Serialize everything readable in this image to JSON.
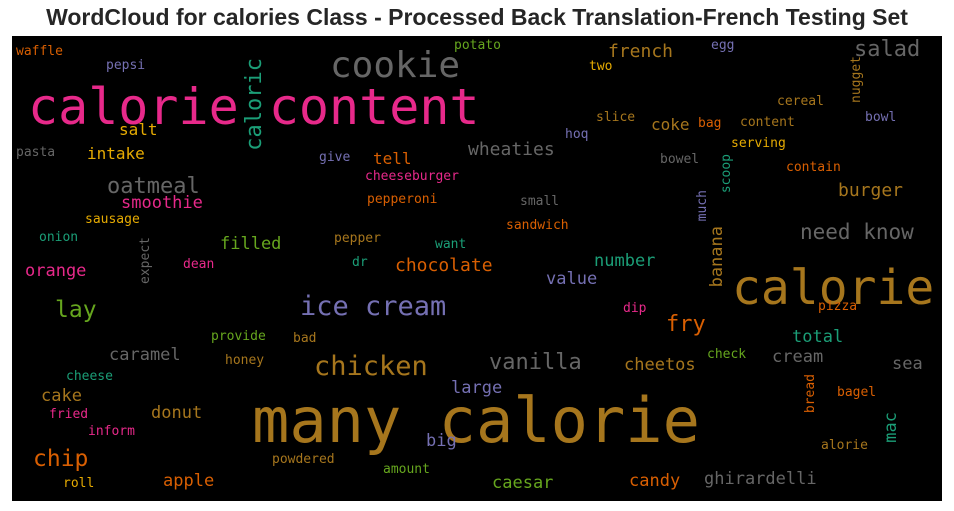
{
  "title": "WordCloud for calories Class - Processed Back Translation-French Testing Set",
  "colors": {
    "background": "#000000",
    "title_text": "#262626",
    "palette": {
      "pink": "#e7298a",
      "green": "#1b9e77",
      "orange": "#d95f02",
      "gold": "#a6761d",
      "grey": "#666666",
      "purple": "#7570b3",
      "yellow": "#e6ab02",
      "lime": "#66a61e"
    }
  },
  "words": [
    {
      "text": "calorie content",
      "color": "#e7298a"
    },
    {
      "text": "cookie",
      "color": "#666666"
    },
    {
      "text": "many calorie",
      "color": "#a6761d"
    },
    {
      "text": "calorie",
      "color": "#a6761d"
    },
    {
      "text": "ice cream",
      "color": "#7570b3"
    },
    {
      "text": "chicken",
      "color": "#a6761d"
    },
    {
      "text": "salad",
      "color": "#666666"
    },
    {
      "text": "caloric",
      "color": "#1b9e77"
    },
    {
      "text": "need know",
      "color": "#666666"
    },
    {
      "text": "vanilla",
      "color": "#666666"
    },
    {
      "text": "oatmeal",
      "color": "#666666"
    },
    {
      "text": "fry",
      "color": "#d95f02"
    },
    {
      "text": "lay",
      "color": "#66a61e"
    },
    {
      "text": "chip",
      "color": "#d95f02"
    },
    {
      "text": "french",
      "color": "#a6761d"
    },
    {
      "text": "chocolate",
      "color": "#d95f02"
    },
    {
      "text": "burger",
      "color": "#a6761d"
    },
    {
      "text": "wheaties",
      "color": "#666666"
    },
    {
      "text": "smoothie",
      "color": "#e7298a"
    },
    {
      "text": "orange",
      "color": "#e7298a"
    },
    {
      "text": "filled",
      "color": "#66a61e"
    },
    {
      "text": "number",
      "color": "#1b9e77"
    },
    {
      "text": "value",
      "color": "#7570b3"
    },
    {
      "text": "banana",
      "color": "#a6761d"
    },
    {
      "text": "caramel",
      "color": "#666666"
    },
    {
      "text": "cheetos",
      "color": "#a6761d"
    },
    {
      "text": "total",
      "color": "#1b9e77"
    },
    {
      "text": "cream",
      "color": "#666666"
    },
    {
      "text": "sea",
      "color": "#666666"
    },
    {
      "text": "large",
      "color": "#7570b3"
    },
    {
      "text": "cake",
      "color": "#a6761d"
    },
    {
      "text": "donut",
      "color": "#a6761d"
    },
    {
      "text": "big",
      "color": "#7570b3"
    },
    {
      "text": "apple",
      "color": "#d95f02"
    },
    {
      "text": "caesar",
      "color": "#66a61e"
    },
    {
      "text": "candy",
      "color": "#d95f02"
    },
    {
      "text": "ghirardelli",
      "color": "#666666"
    },
    {
      "text": "mac",
      "color": "#1b9e77"
    },
    {
      "text": "intake",
      "color": "#e6ab02"
    },
    {
      "text": "salt",
      "color": "#e6ab02"
    },
    {
      "text": "tell",
      "color": "#d95f02"
    },
    {
      "text": "coke",
      "color": "#a6761d"
    },
    {
      "text": "waffle",
      "color": "#d95f02"
    },
    {
      "text": "pepsi",
      "color": "#7570b3"
    },
    {
      "text": "potato",
      "color": "#66a61e"
    },
    {
      "text": "two",
      "color": "#e6ab02"
    },
    {
      "text": "egg",
      "color": "#7570b3"
    },
    {
      "text": "nugget",
      "color": "#a6761d"
    },
    {
      "text": "cereal",
      "color": "#a6761d"
    },
    {
      "text": "bowl",
      "color": "#7570b3"
    },
    {
      "text": "slice",
      "color": "#a6761d"
    },
    {
      "text": "bag",
      "color": "#d95f02"
    },
    {
      "text": "content",
      "color": "#a6761d"
    },
    {
      "text": "hoq",
      "color": "#7570b3"
    },
    {
      "text": "serving",
      "color": "#e6ab02"
    },
    {
      "text": "pasta",
      "color": "#666666"
    },
    {
      "text": "give",
      "color": "#7570b3"
    },
    {
      "text": "bowel",
      "color": "#666666"
    },
    {
      "text": "contain",
      "color": "#d95f02"
    },
    {
      "text": "cheeseburger",
      "color": "#e7298a"
    },
    {
      "text": "scoop",
      "color": "#1b9e77"
    },
    {
      "text": "sausage",
      "color": "#e6ab02"
    },
    {
      "text": "pepperoni",
      "color": "#d95f02"
    },
    {
      "text": "small",
      "color": "#666666"
    },
    {
      "text": "much",
      "color": "#7570b3"
    },
    {
      "text": "onion",
      "color": "#1b9e77"
    },
    {
      "text": "sandwich",
      "color": "#d95f02"
    },
    {
      "text": "expect",
      "color": "#666666"
    },
    {
      "text": "pepper",
      "color": "#a6761d"
    },
    {
      "text": "want",
      "color": "#1b9e77"
    },
    {
      "text": "dean",
      "color": "#e7298a"
    },
    {
      "text": "dr",
      "color": "#1b9e77"
    },
    {
      "text": "dip",
      "color": "#e7298a"
    },
    {
      "text": "pizza",
      "color": "#d95f02"
    },
    {
      "text": "provide",
      "color": "#66a61e"
    },
    {
      "text": "bad",
      "color": "#a6761d"
    },
    {
      "text": "honey",
      "color": "#a6761d"
    },
    {
      "text": "check",
      "color": "#66a61e"
    },
    {
      "text": "cheese",
      "color": "#1b9e77"
    },
    {
      "text": "bread",
      "color": "#d95f02"
    },
    {
      "text": "bagel",
      "color": "#d95f02"
    },
    {
      "text": "fried",
      "color": "#e7298a"
    },
    {
      "text": "inform",
      "color": "#e7298a"
    },
    {
      "text": "alorie",
      "color": "#a6761d"
    },
    {
      "text": "powdered",
      "color": "#a6761d"
    },
    {
      "text": "amount",
      "color": "#66a61e"
    },
    {
      "text": "roll",
      "color": "#e6ab02"
    }
  ]
}
